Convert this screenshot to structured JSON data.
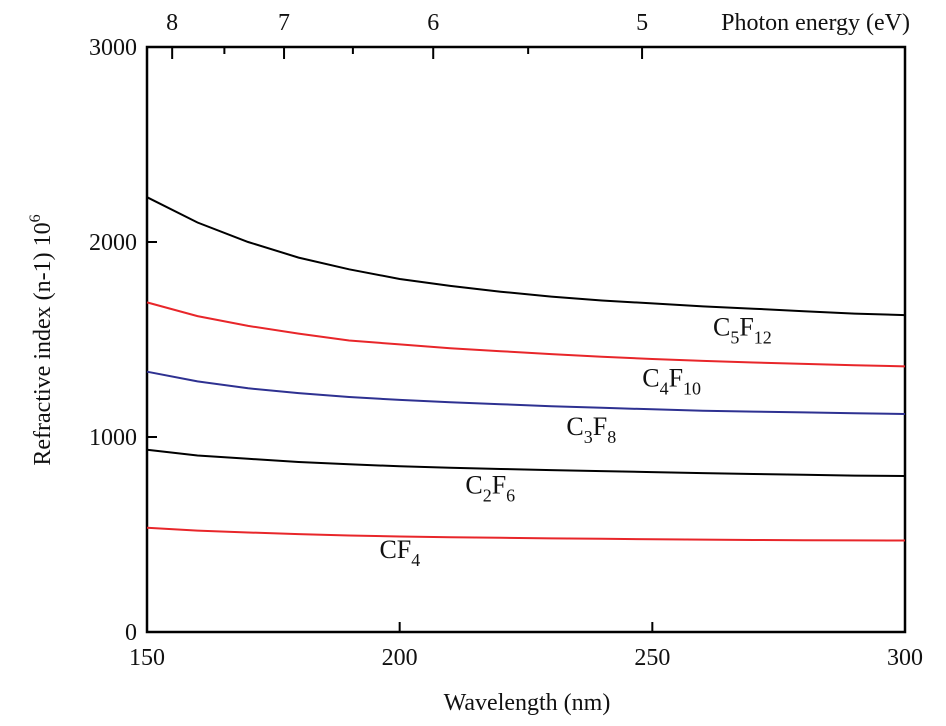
{
  "chart_data": {
    "type": "line",
    "xlabel": "Wavelength (nm)",
    "ylabel_text": "Refractive index (n-1) 10",
    "ylabel_superscript": "6",
    "top_axis_title": "Photon energy (eV)",
    "xlim": [
      150,
      300
    ],
    "ylim": [
      0,
      3000
    ],
    "x_ticks": [
      150,
      200,
      250,
      300
    ],
    "x_tick_labels": [
      "150",
      "200",
      "250",
      "300"
    ],
    "y_ticks": [
      0,
      1000,
      2000,
      3000
    ],
    "y_tick_labels": [
      "0",
      "1000",
      "2000",
      "3000"
    ],
    "top_ticks": [
      {
        "energy": 8,
        "label": "8"
      },
      {
        "energy": 7,
        "label": "7"
      },
      {
        "energy": 6,
        "label": "6"
      },
      {
        "energy": 5,
        "label": "5"
      }
    ],
    "x": [
      150,
      160,
      170,
      180,
      190,
      200,
      210,
      220,
      230,
      240,
      250,
      260,
      270,
      280,
      290,
      300
    ],
    "series": [
      {
        "name": "C5F12",
        "base": "C",
        "sub1": "5",
        "mid": "F",
        "sub2": "12",
        "color": "#000000",
        "label_at": [
          262,
          1520
        ],
        "values": [
          2230,
          2100,
          2000,
          1920,
          1860,
          1810,
          1775,
          1745,
          1720,
          1700,
          1685,
          1670,
          1658,
          1645,
          1633,
          1625
        ]
      },
      {
        "name": "C4F10",
        "base": "C",
        "sub1": "4",
        "mid": "F",
        "sub2": "10",
        "color": "#e8262a",
        "label_at": [
          248,
          1260
        ],
        "values": [
          1690,
          1620,
          1570,
          1530,
          1495,
          1475,
          1455,
          1440,
          1425,
          1412,
          1400,
          1390,
          1382,
          1375,
          1368,
          1362
        ]
      },
      {
        "name": "C3F8",
        "base": "C",
        "sub1": "3",
        "mid": "F",
        "sub2": "8",
        "color": "#2e3191",
        "label_at": [
          233,
          1010
        ],
        "values": [
          1335,
          1285,
          1250,
          1225,
          1205,
          1190,
          1178,
          1168,
          1158,
          1150,
          1142,
          1135,
          1130,
          1126,
          1122,
          1118
        ]
      },
      {
        "name": "C2F6",
        "base": "C",
        "sub1": "2",
        "mid": "F",
        "sub2": "6",
        "color": "#000000",
        "label_at": [
          213,
          710
        ],
        "values": [
          935,
          905,
          888,
          872,
          860,
          850,
          842,
          836,
          830,
          825,
          820,
          815,
          810,
          806,
          802,
          800
        ]
      },
      {
        "name": "CF4",
        "base": "CF",
        "sub1": "4",
        "mid": "",
        "sub2": "",
        "color": "#e8262a",
        "label_at": [
          196,
          380
        ],
        "values": [
          535,
          520,
          510,
          502,
          495,
          490,
          486,
          483,
          480,
          478,
          476,
          474,
          472,
          471,
          470,
          469
        ]
      }
    ]
  }
}
